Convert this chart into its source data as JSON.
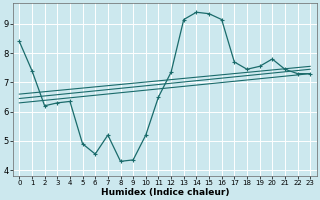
{
  "xlabel": "Humidex (Indice chaleur)",
  "bg_color": "#cce8ee",
  "line_color": "#1a6b6b",
  "grid_color": "#ffffff",
  "xlim": [
    -0.5,
    23.5
  ],
  "ylim": [
    3.8,
    9.7
  ],
  "yticks": [
    4,
    5,
    6,
    7,
    8,
    9
  ],
  "xticks": [
    0,
    1,
    2,
    3,
    4,
    5,
    6,
    7,
    8,
    9,
    10,
    11,
    12,
    13,
    14,
    15,
    16,
    17,
    18,
    19,
    20,
    21,
    22,
    23
  ],
  "main_x": [
    0,
    1,
    2,
    3,
    4,
    5,
    6,
    7,
    8,
    9,
    10,
    11,
    12,
    13,
    14,
    15,
    16,
    17,
    18,
    19,
    20,
    21,
    22,
    23
  ],
  "main_y": [
    8.4,
    7.4,
    6.2,
    6.3,
    6.35,
    4.9,
    4.55,
    5.2,
    4.3,
    4.35,
    5.2,
    6.5,
    7.35,
    9.15,
    9.4,
    9.35,
    9.15,
    7.7,
    7.45,
    7.55,
    7.8,
    7.45,
    7.3,
    7.3
  ],
  "trend_lines": [
    {
      "x0": 0,
      "y0": 6.3,
      "x1": 23,
      "y1": 7.3
    },
    {
      "x0": 0,
      "y0": 6.45,
      "x1": 23,
      "y1": 7.45
    },
    {
      "x0": 0,
      "y0": 6.6,
      "x1": 23,
      "y1": 7.55
    }
  ]
}
